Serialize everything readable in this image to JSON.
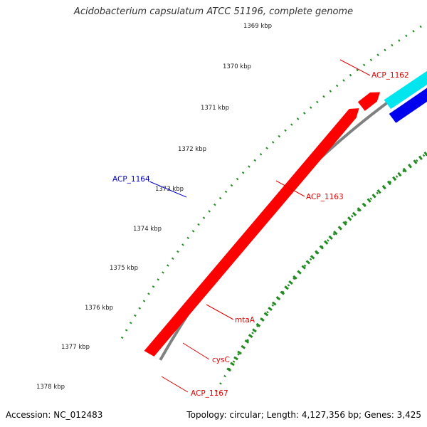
{
  "title": "Acidobacterium capsulatum ATCC 51196, complete genome",
  "footer": {
    "accession": "Accession: NC_012483",
    "info": "Topology: circular; Length: 4,127,356 bp; Genes: 3,425"
  },
  "ticks": [
    "1369 kbp",
    "1370 kbp",
    "1371 kbp",
    "1372 kbp",
    "1373 kbp",
    "1374 kbp",
    "1375 kbp",
    "1376 kbp",
    "1377 kbp",
    "1378 kbp"
  ],
  "gene_labels": [
    {
      "text": "ACP_1162",
      "color": "#e00000"
    },
    {
      "text": "ACP_1163",
      "color": "#e00000"
    },
    {
      "text": "ACP_1164",
      "color": "#0000cc"
    },
    {
      "text": "mtaA",
      "color": "#e00000"
    },
    {
      "text": "cysC",
      "color": "#e00000"
    },
    {
      "text": "ACP_1167",
      "color": "#e00000"
    }
  ],
  "colors": {
    "cds": "#ff0000",
    "cds_blue": "#0000ee",
    "cds_cyan": "#00e5ee",
    "cds_purple": "#4b4b8c",
    "cds_green": "#00e58a",
    "backbone": "#808080",
    "tick_ring": "#228b22"
  }
}
